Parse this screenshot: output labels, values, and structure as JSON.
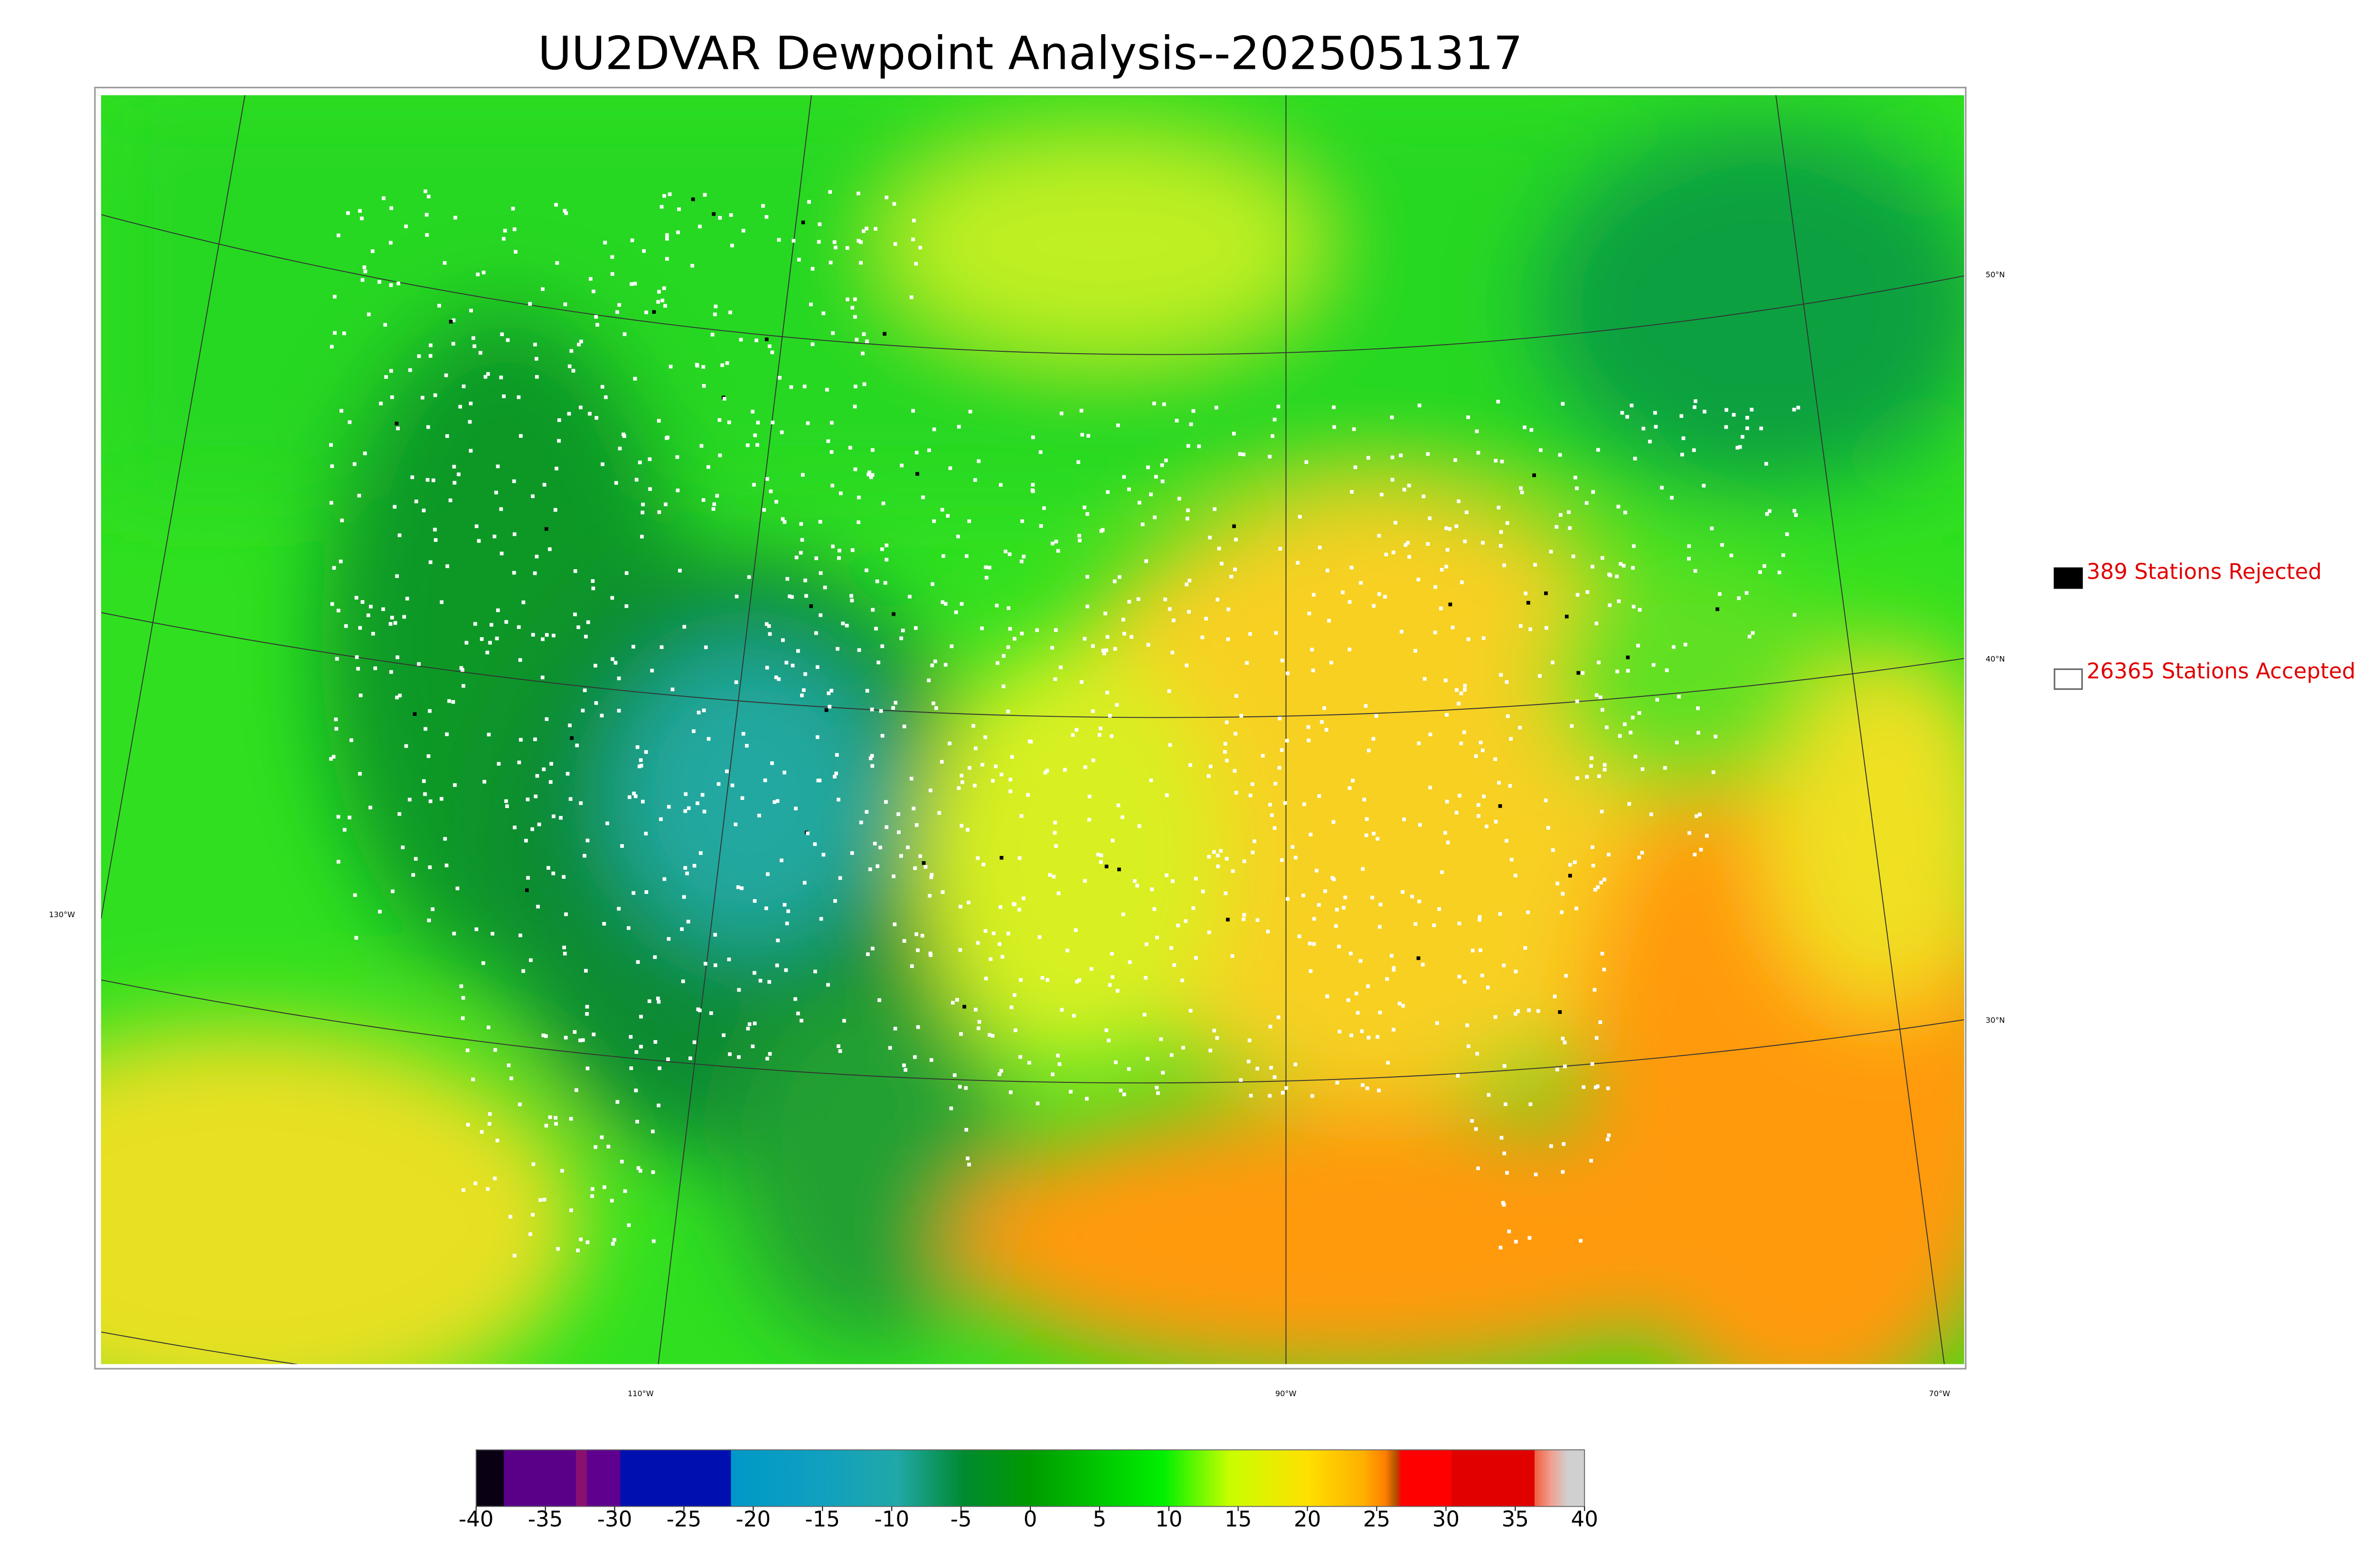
{
  "title": "UU2DVAR Dewpoint Analysis--2025051317",
  "legend": [
    {
      "label": "389 Stations Rejected"
    },
    {
      "label": "26365 Stations Accepted"
    }
  ],
  "latitude_labels": [
    "50°N",
    "40°N",
    "30°N"
  ],
  "longitude_labels": [
    "130°W",
    "110°W",
    "90°W",
    "70°W"
  ],
  "colorbar": {
    "range": [
      -40,
      40
    ],
    "ticks": [
      -40,
      -35,
      -30,
      -25,
      -20,
      -15,
      -10,
      -5,
      0,
      5,
      10,
      15,
      20,
      25,
      30,
      35,
      40
    ]
  }
}
